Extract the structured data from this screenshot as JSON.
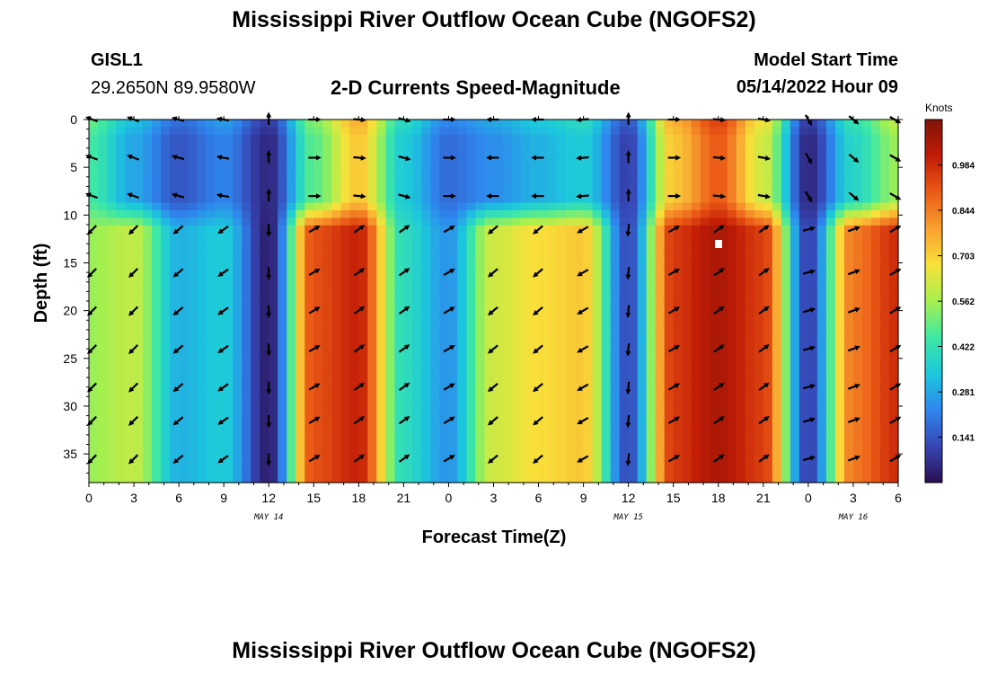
{
  "page": {
    "title": "Mississippi River Outflow Ocean Cube (NGOFS2)",
    "bottom_title": "Mississippi River Outflow Ocean Cube (NGOFS2)",
    "station_id": "GISL1",
    "station_coords": "29.2650N  89.9580W",
    "subtitle": "2-D Currents Speed-Magnitude",
    "model_start_label": "Model Start Time",
    "model_start_value": "05/14/2022 Hour 09"
  },
  "chart_data": {
    "type": "heatmap",
    "title": "2-D Currents Speed-Magnitude",
    "xlabel": "Forecast Time(Z)",
    "ylabel": "Depth (ft)",
    "x_tick_labels": [
      "0",
      "3",
      "6",
      "9",
      "12",
      "15",
      "18",
      "21",
      "0",
      "3",
      "6",
      "9",
      "12",
      "15",
      "18",
      "21",
      "0",
      "3",
      "6"
    ],
    "x_day_labels": [
      "MAY 14",
      "MAY 15",
      "MAY 16"
    ],
    "y_tick_labels": [
      "0",
      "5",
      "10",
      "15",
      "20",
      "25",
      "30",
      "35"
    ],
    "xlim_hours": [
      0,
      54
    ],
    "ylim_ft": [
      0,
      38
    ],
    "colorbar": {
      "label": "Knots",
      "tick_labels": [
        "0.984",
        "0.844",
        "0.703",
        "0.562",
        "0.422",
        "0.281",
        "0.141"
      ],
      "range": [
        0.0,
        1.125
      ],
      "colormap": [
        "#2a0f52",
        "#3646b4",
        "#2f86ee",
        "#1cc8dc",
        "#3ee8a4",
        "#a6f04e",
        "#f8e13a",
        "#f9a030",
        "#ea5a16",
        "#c21b06",
        "#7f1409"
      ]
    },
    "surface_depths_ft": [
      0,
      4,
      8
    ],
    "deep_depths_ft": [
      11.5,
      16,
      20,
      24,
      28,
      31.5,
      35.5
    ],
    "surface_layers": {
      "times_h": [
        0,
        3,
        6,
        9,
        12,
        15,
        18,
        21,
        24,
        27,
        30,
        33,
        36,
        39,
        42,
        45,
        48,
        51,
        54
      ],
      "speed_kn": [
        0.45,
        0.28,
        0.14,
        0.22,
        0.05,
        0.48,
        0.72,
        0.35,
        0.18,
        0.24,
        0.3,
        0.35,
        0.1,
        0.72,
        0.9,
        0.62,
        0.05,
        0.38,
        0.55
      ],
      "arrow_dir_deg": [
        200,
        200,
        195,
        190,
        270,
        0,
        5,
        15,
        0,
        180,
        180,
        175,
        270,
        0,
        5,
        10,
        60,
        40,
        30
      ]
    },
    "deep_layers": {
      "times_h": [
        0,
        3,
        6,
        9,
        12,
        15,
        18,
        21,
        24,
        27,
        30,
        33,
        36,
        39,
        42,
        45,
        48,
        51,
        54
      ],
      "speed_kn": [
        0.55,
        0.6,
        0.3,
        0.35,
        0.03,
        0.92,
        1.0,
        0.4,
        0.25,
        0.62,
        0.68,
        0.72,
        0.12,
        0.96,
        1.05,
        0.95,
        0.1,
        0.85,
        0.98
      ],
      "arrow_dir_deg": [
        135,
        135,
        140,
        145,
        90,
        -30,
        -35,
        -35,
        -30,
        140,
        140,
        150,
        95,
        -30,
        -35,
        -35,
        -15,
        -20,
        -30
      ]
    }
  }
}
